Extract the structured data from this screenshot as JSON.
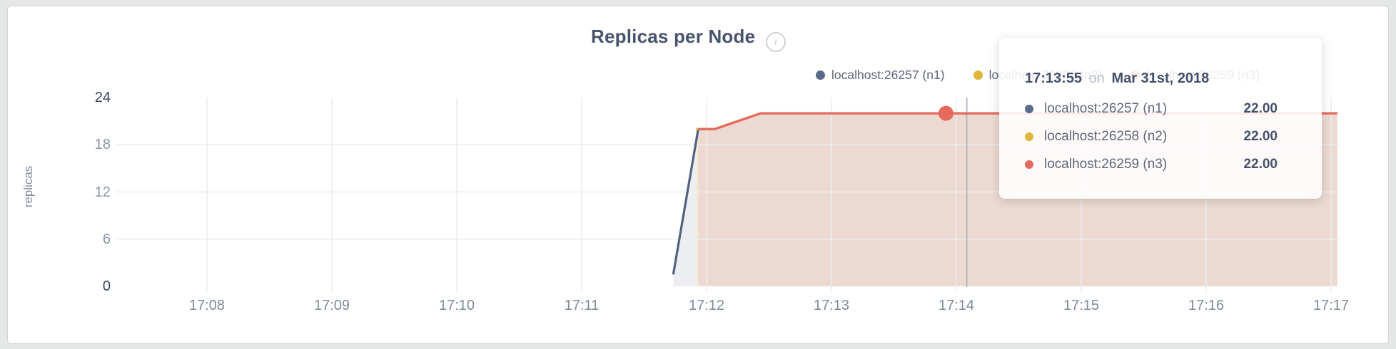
{
  "header": {
    "title": "Replicas per Node"
  },
  "legend": {
    "items": [
      {
        "label": "localhost:26257 (n1)",
        "color": "#5a6b8a"
      },
      {
        "label": "localhost:26258 (n2)",
        "color": "#dfb53a"
      },
      {
        "label": "localhost:26259 (n3)",
        "color": "#e5695c"
      }
    ]
  },
  "tooltip": {
    "time": "17:13:55",
    "conjunction": "on",
    "date": "Mar 31st, 2018",
    "rows": [
      {
        "label": "localhost:26257 (n1)",
        "value": "22.00",
        "color": "#5a6b8a"
      },
      {
        "label": "localhost:26258 (n2)",
        "value": "22.00",
        "color": "#dfb53a"
      },
      {
        "label": "localhost:26259 (n3)",
        "value": "22.00",
        "color": "#e5695c"
      }
    ]
  },
  "y_axis": {
    "label": "replicas",
    "ticks": [
      "0",
      "6",
      "12",
      "18",
      "24"
    ]
  },
  "x_axis": {
    "ticks": [
      "17:08",
      "17:09",
      "17:10",
      "17:11",
      "17:12",
      "17:13",
      "17:14",
      "17:15",
      "17:16",
      "17:17"
    ]
  },
  "chart_data": {
    "type": "area",
    "title": "Replicas per Node",
    "ylabel": "replicas",
    "ylim": [
      0,
      24
    ],
    "yticks": [
      0,
      6,
      12,
      18,
      24
    ],
    "x_ticks": [
      "17:08",
      "17:09",
      "17:10",
      "17:11",
      "17:12",
      "17:13",
      "17:14",
      "17:15",
      "17:16",
      "17:17"
    ],
    "date": "Mar 31st, 2018",
    "grid": true,
    "legend_position": "top-right",
    "series": [
      {
        "name": "localhost:26257 (n1)",
        "color": "#53627e",
        "fill": "#eceef2",
        "points": [
          [
            "17:11:44",
            1.5
          ],
          [
            "17:11:56",
            20
          ],
          [
            "17:12:04",
            20
          ],
          [
            "17:12:26",
            22
          ],
          [
            "17:17:03",
            22
          ]
        ]
      },
      {
        "name": "localhost:26258 (n2)",
        "color": "#dfb53a",
        "fill": "#f5ead3",
        "points": [
          [
            "17:11:55",
            20
          ],
          [
            "17:12:04",
            20
          ],
          [
            "17:12:26",
            22
          ],
          [
            "17:17:03",
            22
          ]
        ]
      },
      {
        "name": "localhost:26259 (n3)",
        "color": "#e5695c",
        "fill": "#ecdad2",
        "points": [
          [
            "17:11:56",
            20
          ],
          [
            "17:12:04",
            20
          ],
          [
            "17:12:26",
            22
          ],
          [
            "17:17:03",
            22
          ]
        ]
      }
    ],
    "hover": {
      "time": "17:13:55",
      "crosshair_time": "17:14:05",
      "highlighted_series": "localhost:26259 (n3)",
      "value": 22
    }
  },
  "colors": {
    "grid": "#ececec",
    "crosshair": "#b4b8bf",
    "highlight_dot": "#e5695c"
  }
}
